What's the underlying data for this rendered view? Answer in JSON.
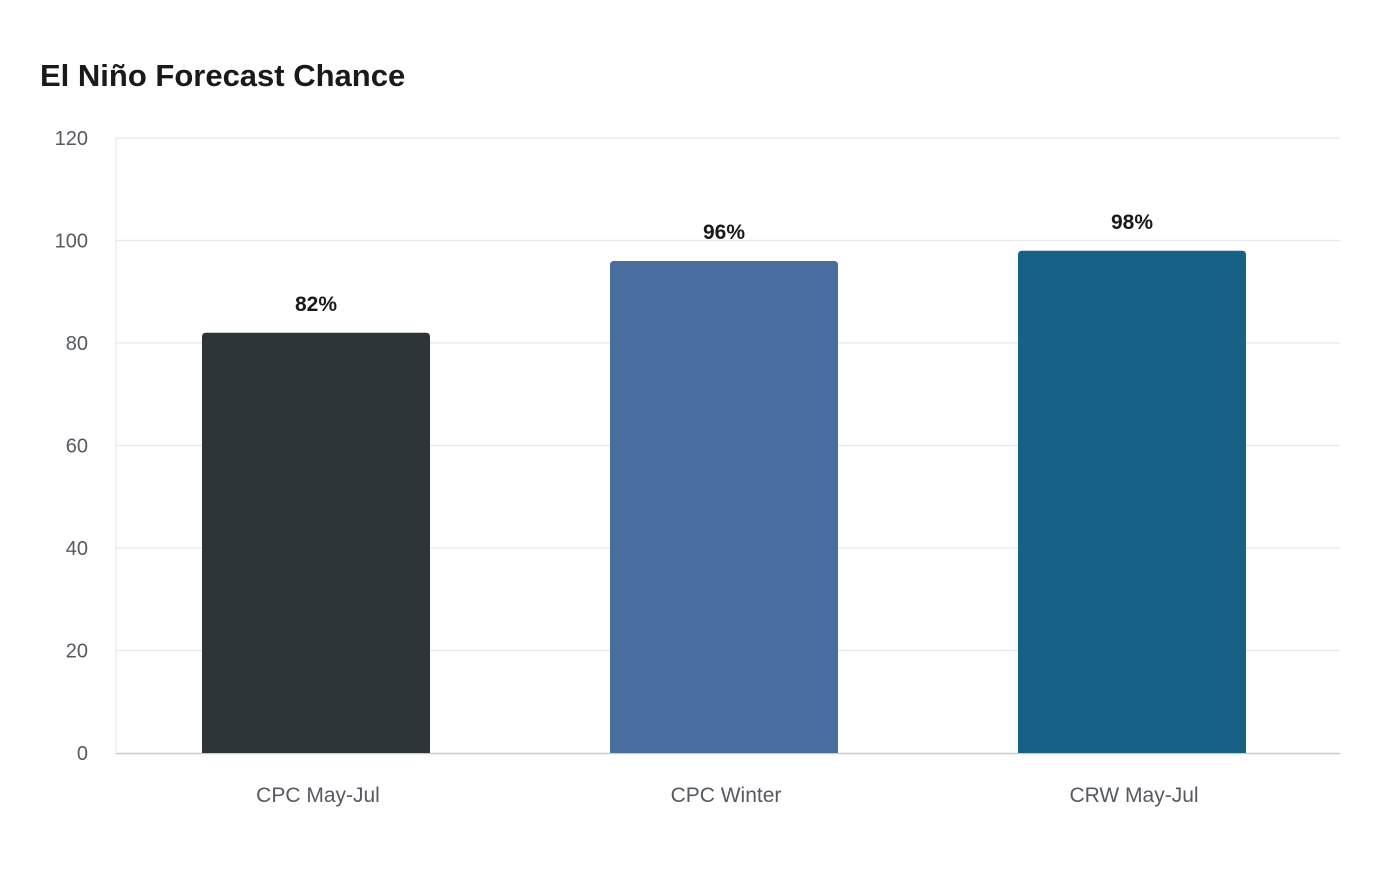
{
  "chart_data": {
    "type": "bar",
    "title": "El Niño Forecast Chance",
    "categories": [
      "CPC May-Jul",
      "CPC Winter",
      "CRW May-Jul"
    ],
    "values": [
      82,
      96,
      98
    ],
    "value_labels": [
      "82%",
      "96%",
      "98%"
    ],
    "colors": [
      "#2e3538",
      "#4a6da0",
      "#176086"
    ],
    "ylim": [
      0,
      120
    ],
    "yticks": [
      0,
      20,
      40,
      60,
      80,
      100,
      120
    ],
    "grid": true,
    "xlabel": "",
    "ylabel": ""
  },
  "style": {
    "grid_color": "#e6e8ea",
    "axis_color": "#c8cbce"
  }
}
